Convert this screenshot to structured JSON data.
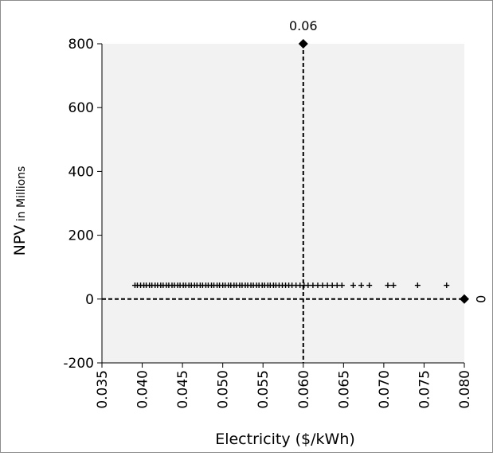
{
  "chart_data": {
    "type": "scatter",
    "title": "",
    "xlabel": "Electricity ($/kWh)",
    "ylabel_main": "NPV",
    "ylabel_suffix": " in Millions",
    "xlim": [
      0.035,
      0.08
    ],
    "ylim": [
      -200,
      800
    ],
    "x_ticks": [
      "0.035",
      "0.040",
      "0.045",
      "0.050",
      "0.055",
      "0.060",
      "0.065",
      "0.070",
      "0.075",
      "0.080"
    ],
    "y_ticks": [
      "-200",
      "0",
      "200",
      "400",
      "600",
      "800"
    ],
    "grid": false,
    "plot_background": "#f2f2f2",
    "series": [
      {
        "marker": "plus",
        "color": "#000000",
        "x": [
          0.0391,
          0.0394,
          0.0398,
          0.0402,
          0.0405,
          0.0409,
          0.0412,
          0.0416,
          0.0419,
          0.0423,
          0.0426,
          0.043,
          0.0433,
          0.0437,
          0.044,
          0.0444,
          0.0447,
          0.0451,
          0.0454,
          0.0458,
          0.0461,
          0.0465,
          0.0468,
          0.0472,
          0.0475,
          0.0479,
          0.0482,
          0.0486,
          0.0489,
          0.0493,
          0.0496,
          0.05,
          0.0503,
          0.0507,
          0.051,
          0.0514,
          0.0517,
          0.0521,
          0.0524,
          0.0528,
          0.0531,
          0.0535,
          0.0538,
          0.0542,
          0.0545,
          0.0549,
          0.0552,
          0.0556,
          0.0559,
          0.0563,
          0.0566,
          0.057,
          0.0574,
          0.0578,
          0.0582,
          0.0586,
          0.0591,
          0.0596,
          0.0601,
          0.0606,
          0.0612,
          0.0618,
          0.0624,
          0.063,
          0.0636,
          0.0642,
          0.0648,
          0.0662,
          0.0672,
          0.0682,
          0.0705,
          0.0712,
          0.0742,
          0.0778
        ],
        "y": [
          43,
          43,
          43,
          43,
          43,
          43,
          43,
          43,
          43,
          43,
          43,
          43,
          43,
          43,
          43,
          43,
          43,
          43,
          43,
          43,
          43,
          43,
          43,
          43,
          43,
          43,
          43,
          43,
          43,
          43,
          43,
          43,
          43,
          43,
          43,
          43,
          43,
          43,
          43,
          43,
          43,
          43,
          43,
          43,
          43,
          43,
          43,
          43,
          43,
          43,
          43,
          43,
          43,
          43,
          43,
          43,
          43,
          43,
          43,
          43,
          43,
          43,
          43,
          43,
          43,
          43,
          43,
          43,
          43,
          43,
          43,
          43,
          43,
          43
        ]
      },
      {
        "marker": "diamond",
        "color": "#000000",
        "x": [
          0.06,
          0.08
        ],
        "y": [
          800,
          0
        ]
      }
    ],
    "reference_lines": [
      {
        "orientation": "vertical",
        "x": 0.06,
        "y_from": -200,
        "y_to": 800,
        "label": "0.06",
        "style": "dashed"
      },
      {
        "orientation": "horizontal",
        "y": 0,
        "x_from": 0.035,
        "x_to": 0.08,
        "label": "0",
        "style": "dashed"
      }
    ]
  }
}
